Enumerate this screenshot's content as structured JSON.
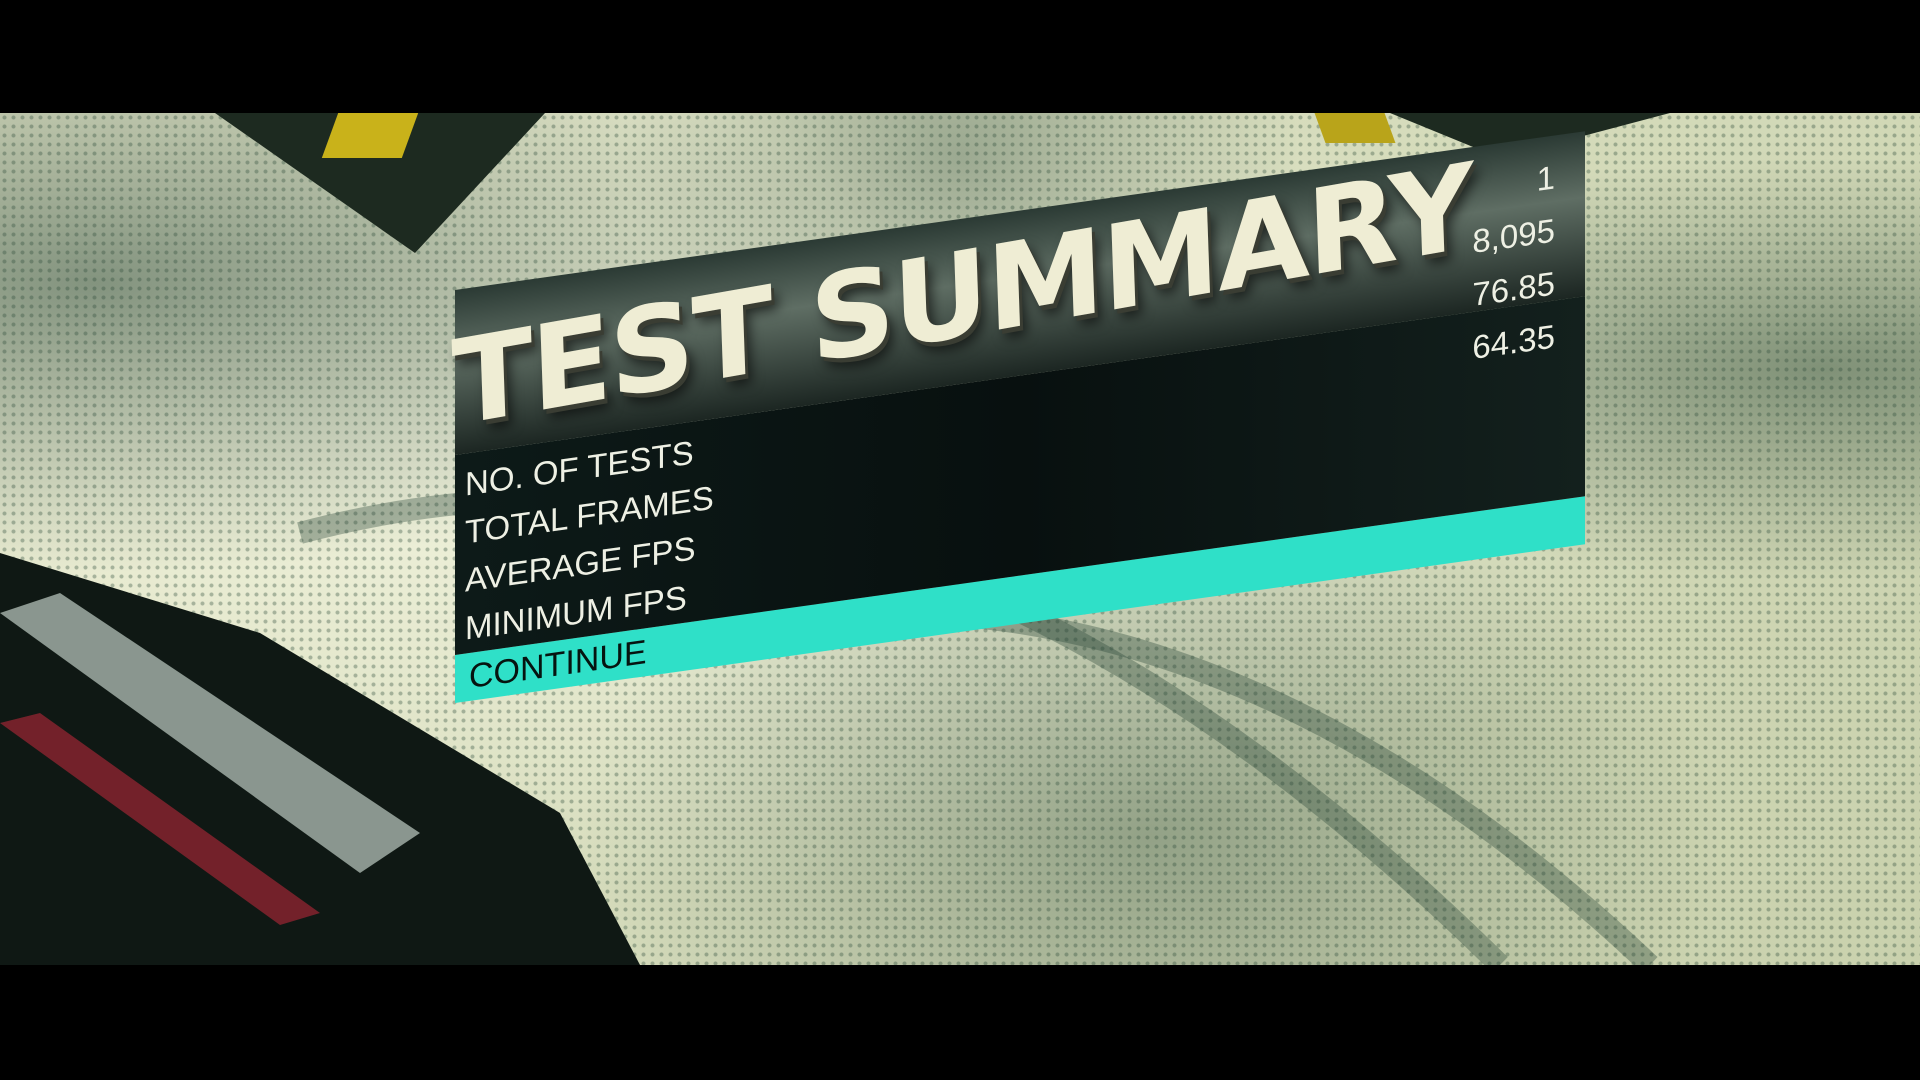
{
  "dialog": {
    "title": "TEST SUMMARY",
    "rows": [
      {
        "label": "NO. OF TESTS",
        "value": "1"
      },
      {
        "label": "TOTAL FRAMES",
        "value": "8,095"
      },
      {
        "label": "AVERAGE FPS",
        "value": "76.85"
      },
      {
        "label": "MINIMUM FPS",
        "value": "64.35"
      }
    ],
    "continue_label": "CONTINUE"
  },
  "colors": {
    "accent": "#2fe0c8",
    "panel": "#0d1a18",
    "title_text": "#efedd4"
  }
}
